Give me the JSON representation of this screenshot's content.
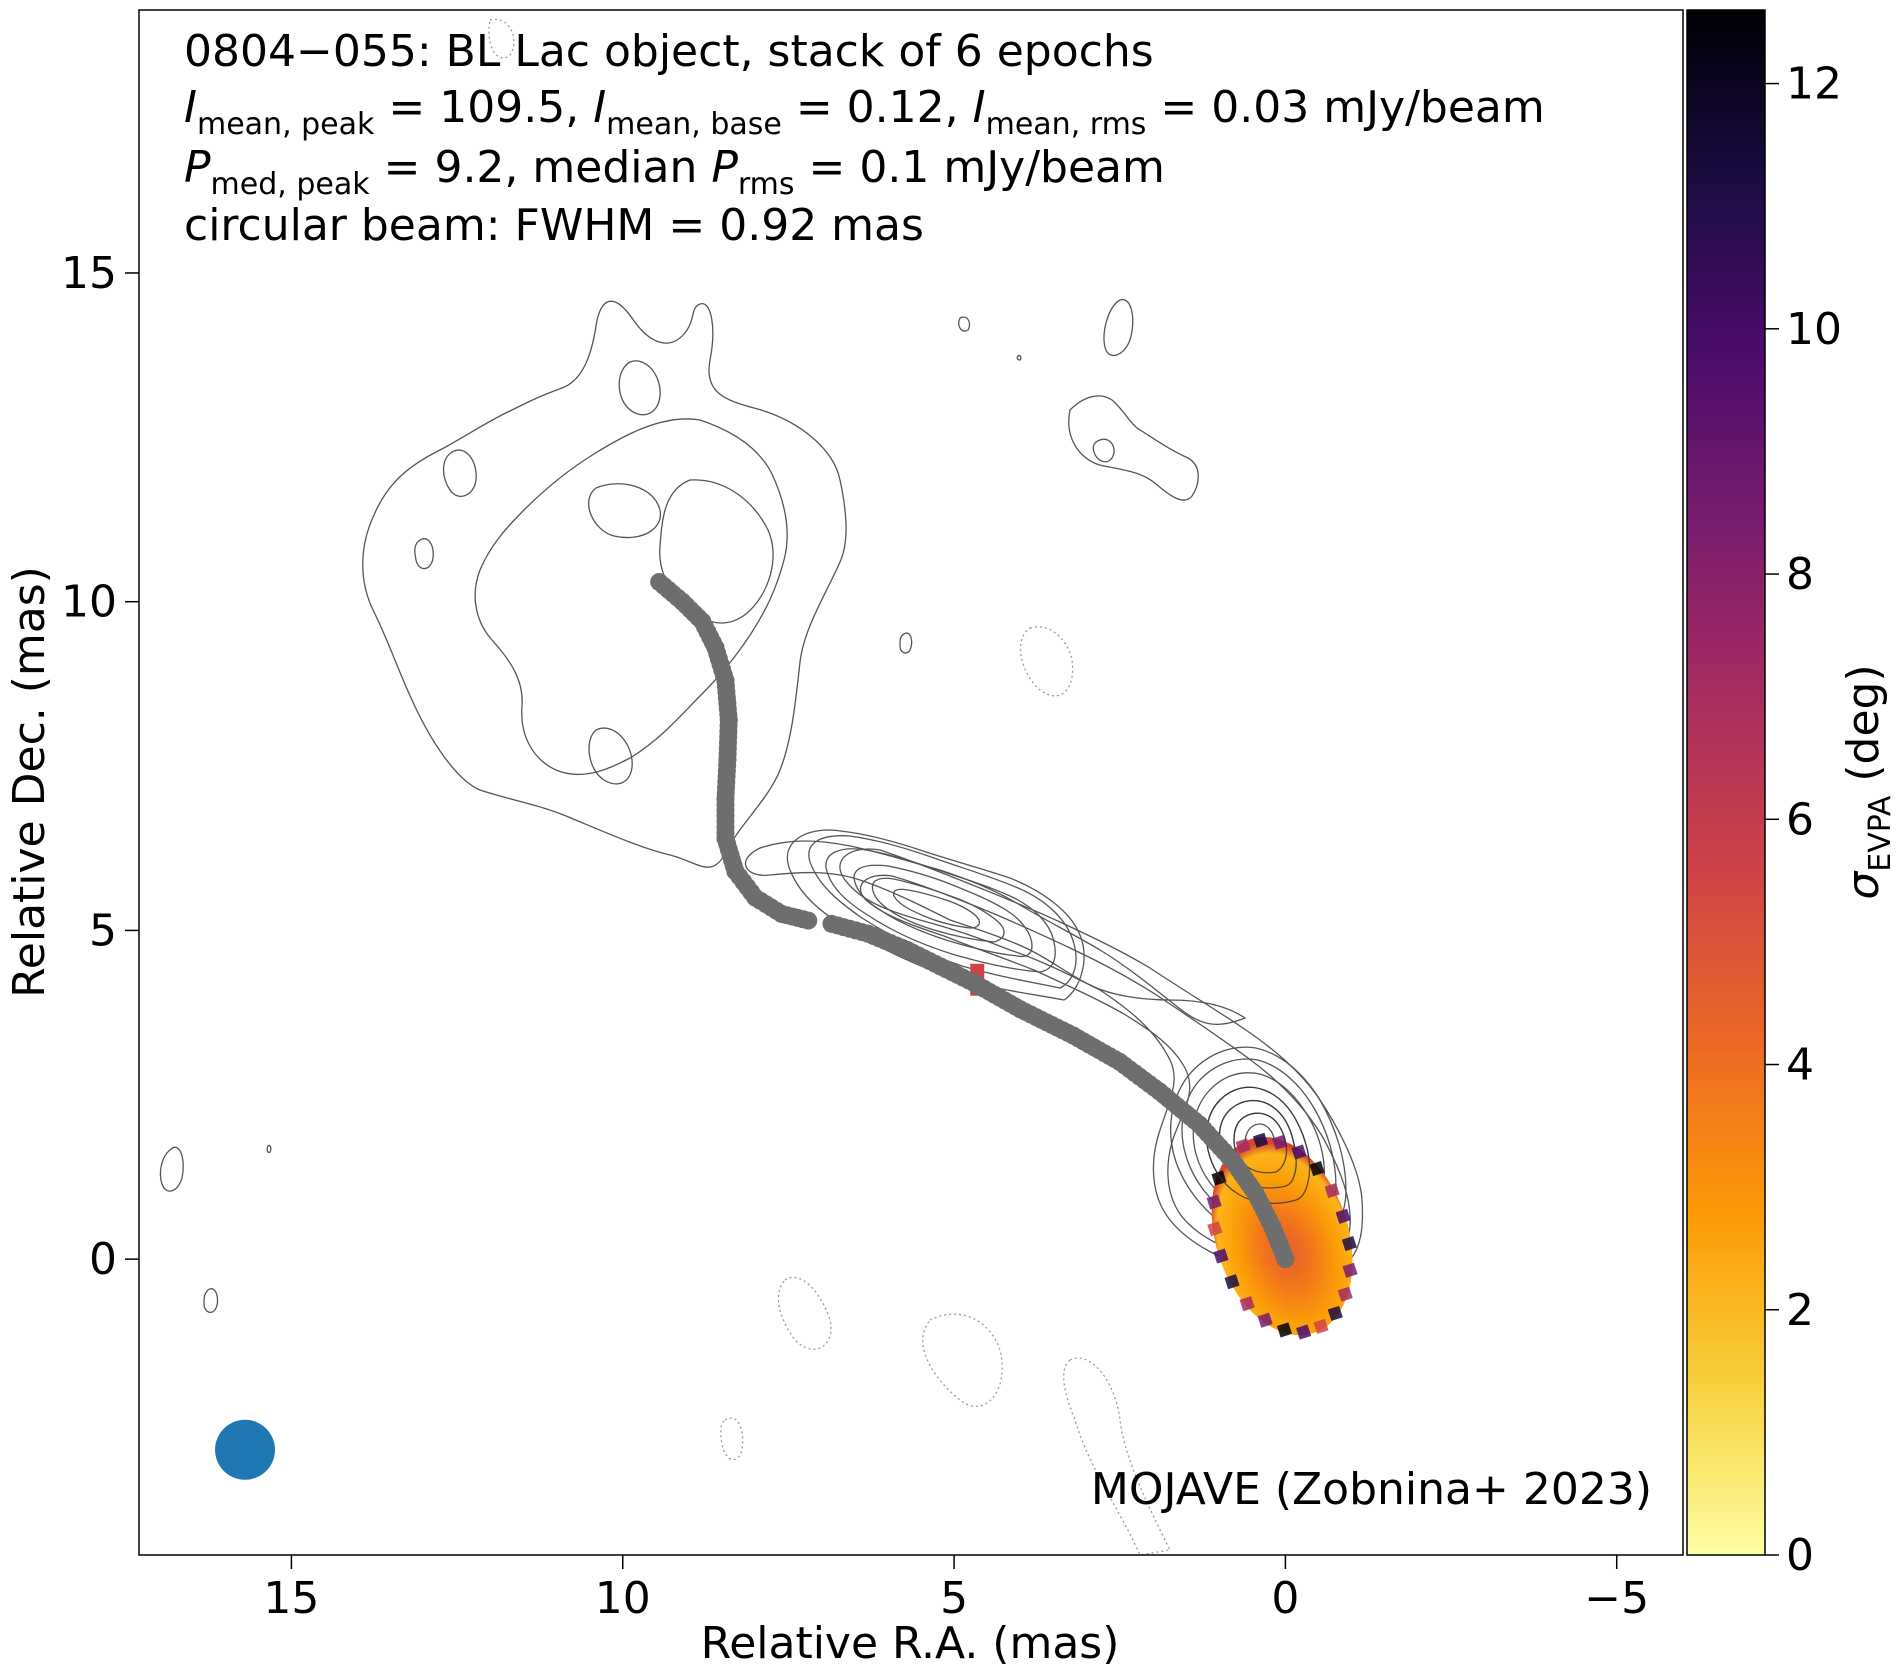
{
  "chart_data": {
    "type": "scatter",
    "title_lines": [
      "0804−055: BL Lac object, stack of 6 epochs",
      "I_mean,peak = 109.5, I_mean,base = 0.12, I_mean,rms = 0.03 mJy/beam",
      "P_med,peak = 9.2, median P_rms = 0.1 mJy/beam",
      "circular beam: FWHM = 0.92 mas"
    ],
    "info": {
      "line1": "0804−055: BL Lac object, stack of 6 epochs",
      "I_peak_label": "I",
      "I_peak_sub": "mean, peak",
      "I_peak_value": " = 109.5, ",
      "I_base_label": "I",
      "I_base_sub": "mean, base",
      "I_base_value": " = 0.12, ",
      "I_rms_label": "I",
      "I_rms_sub": "mean, rms",
      "I_rms_value": " = 0.03 mJy/beam",
      "P_peak_label": "P",
      "P_peak_sub": "med, peak",
      "P_peak_value": " = 9.2, median ",
      "P_rms_label": "P",
      "P_rms_sub": "rms",
      "P_rms_value": " = 0.1 mJy/beam",
      "line4": "circular beam: FWHM = 0.92 mas"
    },
    "credit": "MOJAVE (Zobnina+ 2023)",
    "xlabel": "Relative R.A. (mas)",
    "ylabel": "Relative Dec. (mas)",
    "xlim": [
      17.3,
      -6.0
    ],
    "ylim": [
      -4.5,
      19.0
    ],
    "xticks": [
      15,
      10,
      5,
      0,
      -5
    ],
    "xtick_labels": [
      "15",
      "10",
      "5",
      "0",
      "−5"
    ],
    "yticks": [
      0,
      5,
      10,
      15
    ],
    "ytick_labels": [
      "0",
      "5",
      "10",
      "15"
    ],
    "colorbar": {
      "label_symbol": "σ",
      "label_sub": "EVPA",
      "label_unit": "(deg)",
      "range": [
        0,
        12.6
      ],
      "ticks": [
        0,
        2,
        4,
        6,
        8,
        10,
        12
      ],
      "tick_labels": [
        "0",
        "2",
        "4",
        "6",
        "8",
        "10",
        "12"
      ],
      "colormap": "inferno_r",
      "colors": [
        "#fcffa4",
        "#f7d13d",
        "#fb9b06",
        "#ed6925",
        "#cf4446",
        "#a52c60",
        "#781c6d",
        "#4a0c6b",
        "#1b0c41",
        "#000004"
      ]
    },
    "ridgeline": {
      "color": "#6e6e6e",
      "points": [
        [
          9.45,
          10.3
        ],
        [
          9.1,
          10.0
        ],
        [
          8.8,
          9.7
        ],
        [
          8.6,
          9.3
        ],
        [
          8.45,
          8.8
        ],
        [
          8.4,
          8.2
        ],
        [
          8.42,
          7.6
        ],
        [
          8.45,
          7.0
        ],
        [
          8.45,
          6.4
        ],
        [
          8.3,
          5.9
        ],
        [
          8.0,
          5.5
        ],
        [
          7.6,
          5.25
        ],
        [
          7.2,
          5.15
        ],
        [
          6.85,
          5.1
        ],
        [
          6.3,
          4.95
        ],
        [
          5.7,
          4.7
        ],
        [
          5.2,
          4.45
        ],
        [
          4.7,
          4.2
        ],
        [
          4.0,
          3.8
        ],
        [
          3.2,
          3.4
        ],
        [
          2.5,
          3.0
        ],
        [
          1.9,
          2.55
        ],
        [
          1.3,
          2.05
        ],
        [
          0.8,
          1.5
        ],
        [
          0.45,
          1.0
        ],
        [
          0.2,
          0.5
        ],
        [
          0.0,
          0.0
        ]
      ]
    },
    "beam": {
      "color": "#1f77b4",
      "center": [
        15.7,
        -2.9
      ],
      "fwhm_mas": 0.92
    },
    "core_pol_patch": {
      "center": [
        0.05,
        0.35
      ],
      "half_width_mas": 1.0,
      "half_height_mas": 1.55,
      "tilt_deg": -18
    },
    "knot_pol_patch": {
      "center": [
        4.65,
        4.25
      ]
    }
  }
}
